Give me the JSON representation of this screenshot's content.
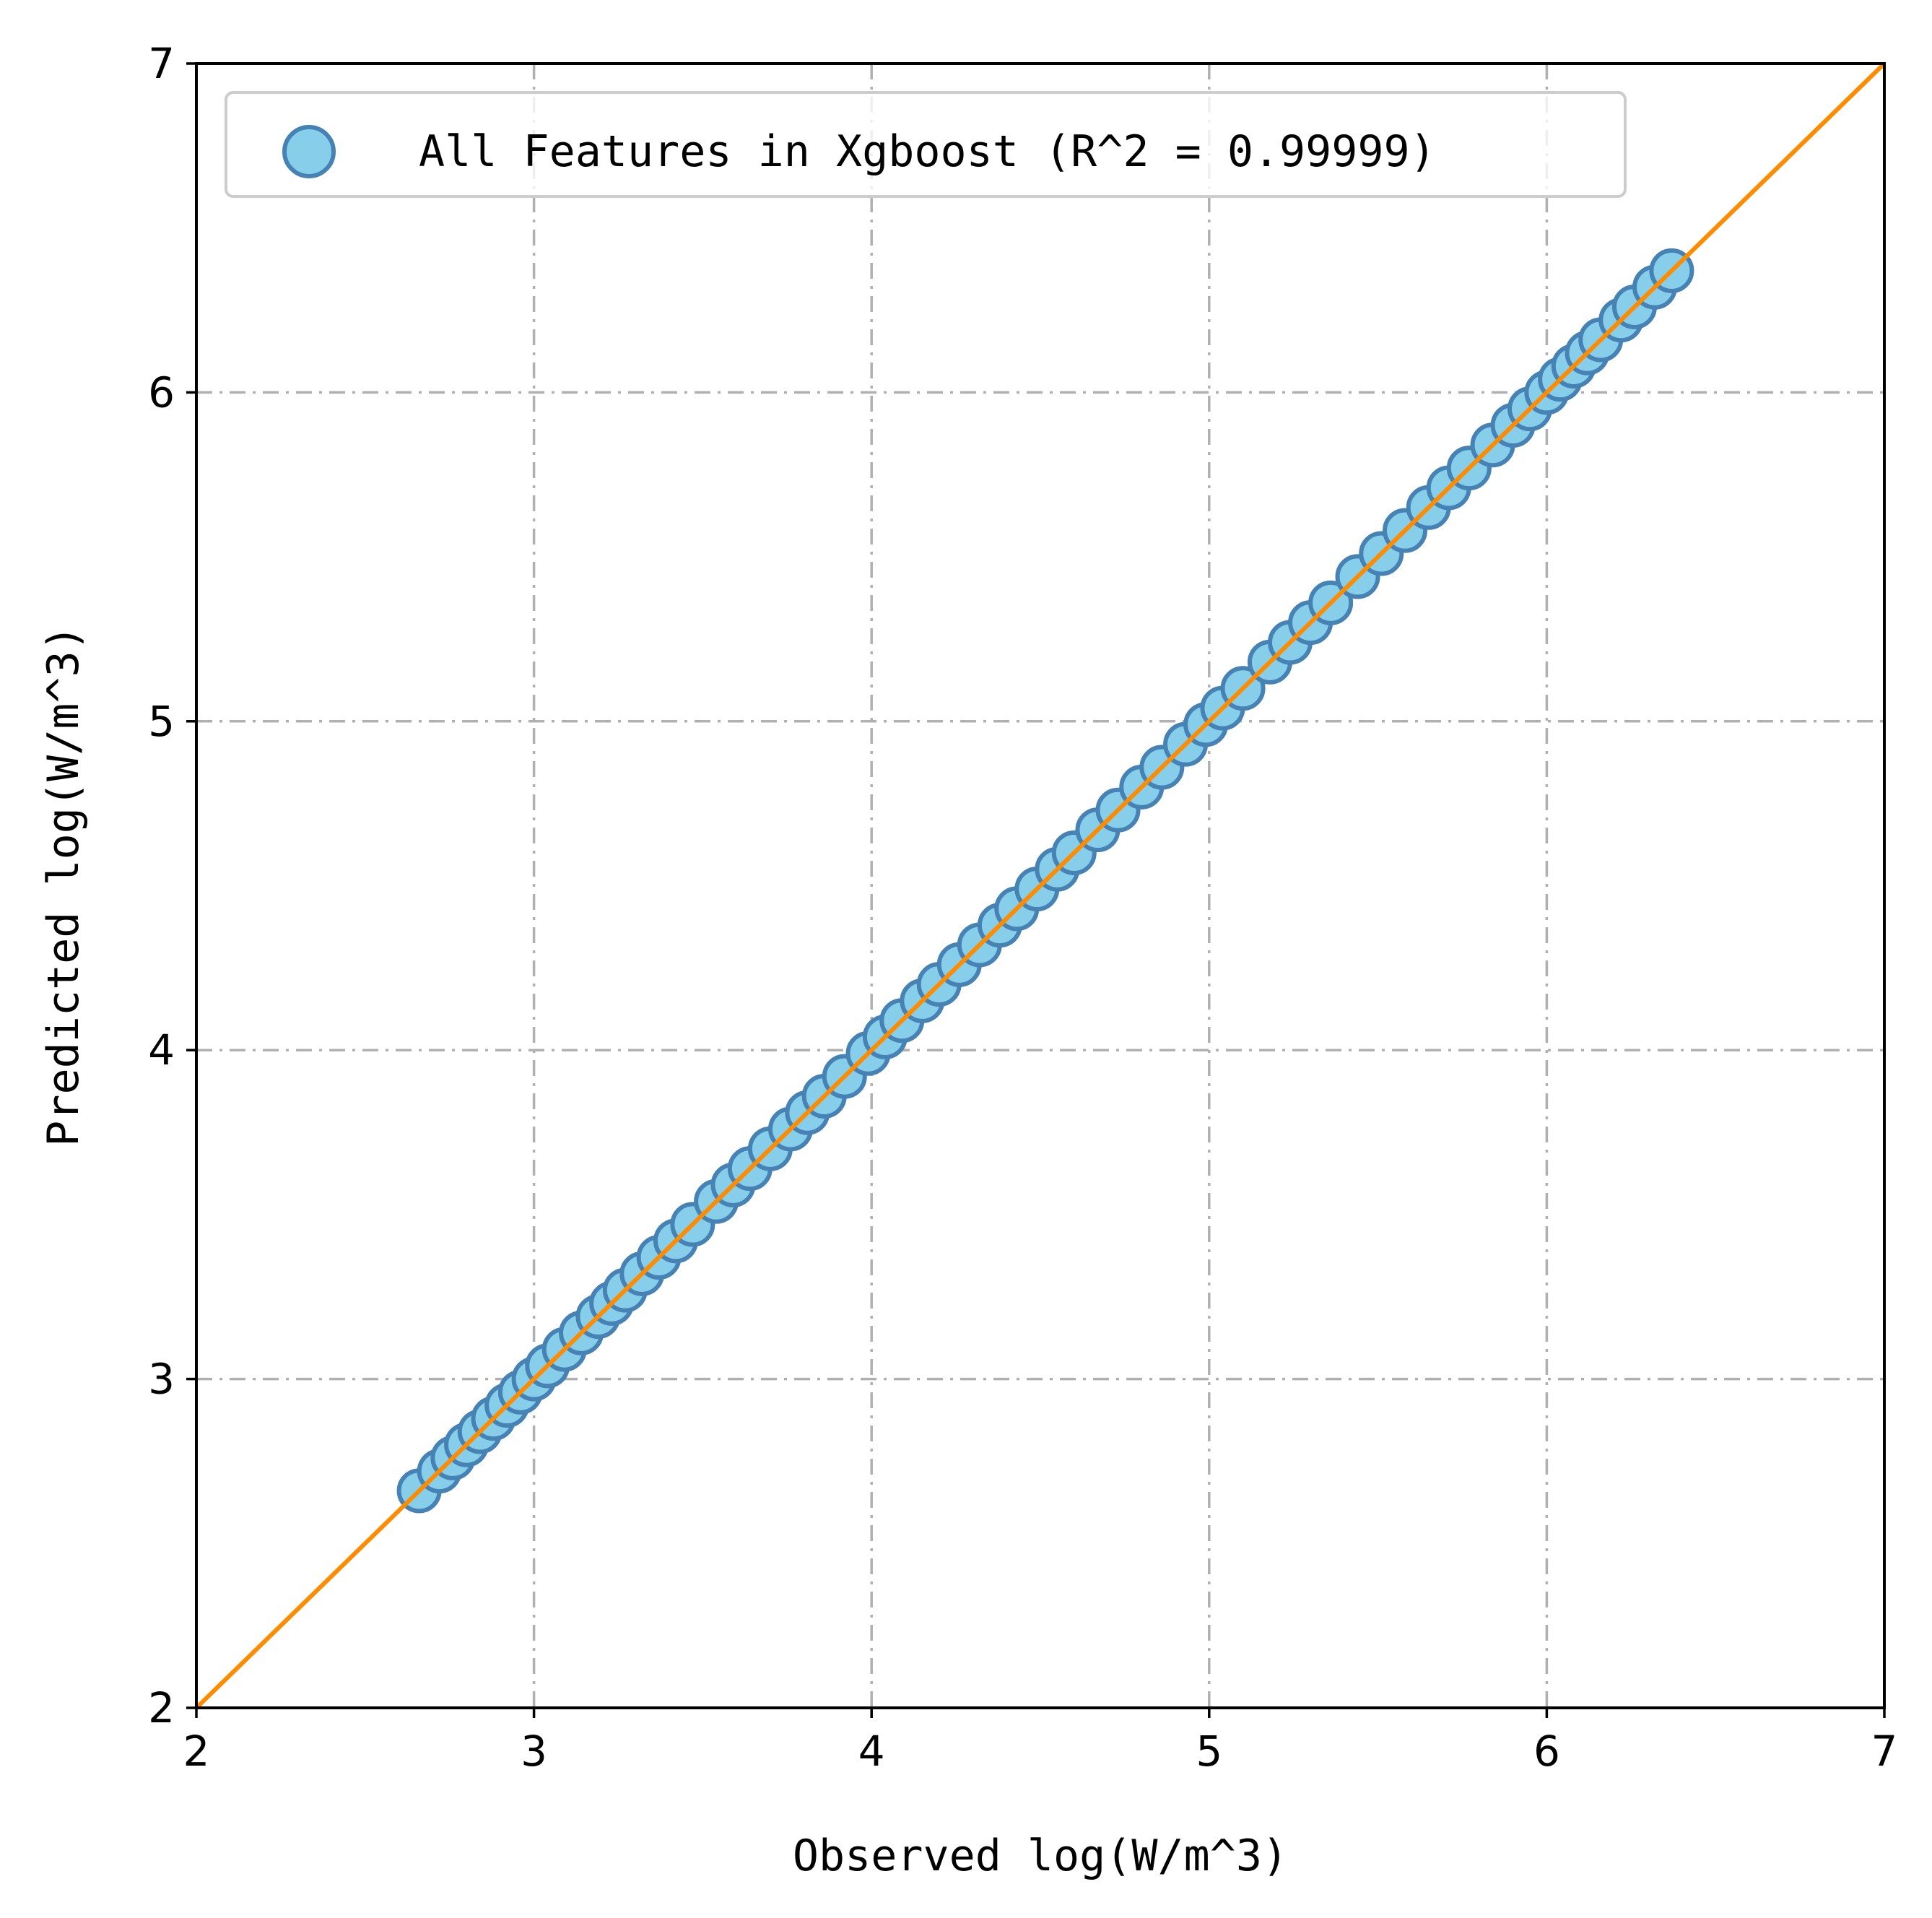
{
  "chart_data": {
    "type": "scatter",
    "title": "",
    "xlabel": "Observed log(W/m^3)",
    "ylabel": "Predicted log(W/m^3)",
    "xlim": [
      2,
      7
    ],
    "ylim": [
      2,
      7
    ],
    "xticks": [
      "2",
      "3",
      "4",
      "5",
      "6",
      "7"
    ],
    "yticks": [
      "2",
      "3",
      "4",
      "5",
      "6",
      "7"
    ],
    "grid": true,
    "legend_position": "upper-left",
    "series": [
      {
        "name": "All Features in Xgboost (R^2 = 0.99999)",
        "color": "#87ceeb",
        "edge_color": "#4682b4",
        "points": [
          [
            2.66,
            2.66
          ],
          [
            2.72,
            2.72
          ],
          [
            2.76,
            2.76
          ],
          [
            2.8,
            2.8
          ],
          [
            2.84,
            2.84
          ],
          [
            2.88,
            2.88
          ],
          [
            2.92,
            2.92
          ],
          [
            2.96,
            2.96
          ],
          [
            3.0,
            3.0
          ],
          [
            3.04,
            3.04
          ],
          [
            3.09,
            3.09
          ],
          [
            3.14,
            3.14
          ],
          [
            3.19,
            3.19
          ],
          [
            3.23,
            3.23
          ],
          [
            3.27,
            3.27
          ],
          [
            3.32,
            3.32
          ],
          [
            3.37,
            3.37
          ],
          [
            3.42,
            3.42
          ],
          [
            3.47,
            3.47
          ],
          [
            3.54,
            3.54
          ],
          [
            3.59,
            3.59
          ],
          [
            3.64,
            3.64
          ],
          [
            3.7,
            3.7
          ],
          [
            3.76,
            3.76
          ],
          [
            3.81,
            3.81
          ],
          [
            3.86,
            3.86
          ],
          [
            3.92,
            3.92
          ],
          [
            3.99,
            3.99
          ],
          [
            4.04,
            4.04
          ],
          [
            4.09,
            4.09
          ],
          [
            4.15,
            4.15
          ],
          [
            4.2,
            4.2
          ],
          [
            4.26,
            4.26
          ],
          [
            4.32,
            4.32
          ],
          [
            4.38,
            4.38
          ],
          [
            4.43,
            4.43
          ],
          [
            4.49,
            4.49
          ],
          [
            4.55,
            4.55
          ],
          [
            4.6,
            4.6
          ],
          [
            4.67,
            4.67
          ],
          [
            4.73,
            4.73
          ],
          [
            4.8,
            4.8
          ],
          [
            4.86,
            4.86
          ],
          [
            4.93,
            4.93
          ],
          [
            4.99,
            4.99
          ],
          [
            5.04,
            5.04
          ],
          [
            5.1,
            5.1
          ],
          [
            5.18,
            5.18
          ],
          [
            5.24,
            5.24
          ],
          [
            5.3,
            5.3
          ],
          [
            5.36,
            5.36
          ],
          [
            5.44,
            5.44
          ],
          [
            5.51,
            5.51
          ],
          [
            5.58,
            5.58
          ],
          [
            5.65,
            5.65
          ],
          [
            5.71,
            5.71
          ],
          [
            5.77,
            5.77
          ],
          [
            5.84,
            5.84
          ],
          [
            5.9,
            5.9
          ],
          [
            5.95,
            5.95
          ],
          [
            6.0,
            6.0
          ],
          [
            6.04,
            6.04
          ],
          [
            6.08,
            6.08
          ],
          [
            6.12,
            6.12
          ],
          [
            6.16,
            6.16
          ],
          [
            6.22,
            6.22
          ],
          [
            6.26,
            6.26
          ],
          [
            6.32,
            6.32
          ],
          [
            6.37,
            6.37
          ]
        ]
      }
    ],
    "reference_line": {
      "from": [
        2,
        2
      ],
      "to": [
        7,
        7
      ],
      "color": "#ff8c00"
    },
    "grid_color": "#b0b0b0"
  }
}
